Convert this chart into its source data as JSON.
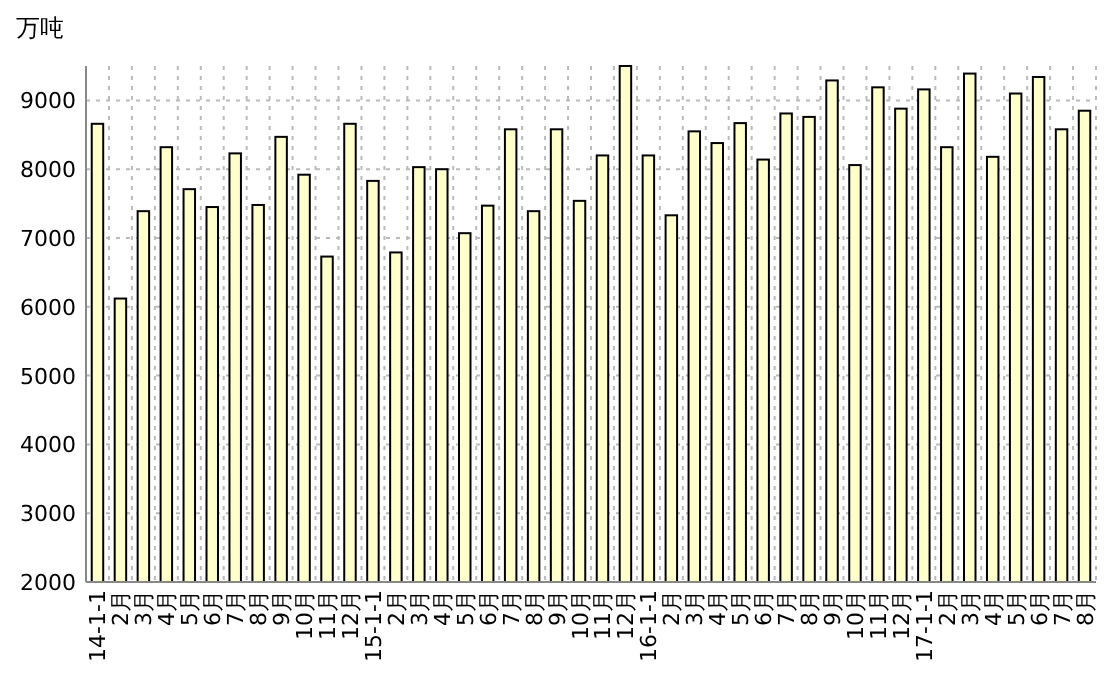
{
  "chart_data": {
    "type": "bar",
    "ylabel": "万吨",
    "categories": [
      "14-1-1",
      "2月",
      "3月",
      "4月",
      "5月",
      "6月",
      "7月",
      "8月",
      "9月",
      "10月",
      "11月",
      "12月",
      "15-1-1",
      "2月",
      "3月",
      "4月",
      "5月",
      "6月",
      "7月",
      "8月",
      "9月",
      "10月",
      "11月",
      "12月",
      "16-1-1",
      "2月",
      "3月",
      "4月",
      "5月",
      "6月",
      "7月",
      "8月",
      "9月",
      "10月",
      "11月",
      "12月",
      "17-1-1",
      "2月",
      "3月",
      "4月",
      "5月",
      "6月",
      "7月",
      "8月"
    ],
    "values": [
      8660,
      6120,
      7390,
      8320,
      7710,
      7450,
      8230,
      7480,
      8470,
      7920,
      6730,
      8660,
      7830,
      6790,
      8030,
      8000,
      7070,
      7470,
      8580,
      7390,
      8580,
      7540,
      8200,
      9500,
      8200,
      7330,
      8550,
      8380,
      8670,
      8140,
      8810,
      8760,
      9290,
      8060,
      9190,
      8880,
      9160,
      8320,
      9390,
      8180,
      9100,
      9340,
      8580,
      8850
    ],
    "color": "#ffffcc",
    "ylim": [
      2000,
      9500
    ],
    "yticks": [
      2000,
      3000,
      4000,
      5000,
      6000,
      7000,
      8000,
      9000
    ],
    "grid": true
  }
}
